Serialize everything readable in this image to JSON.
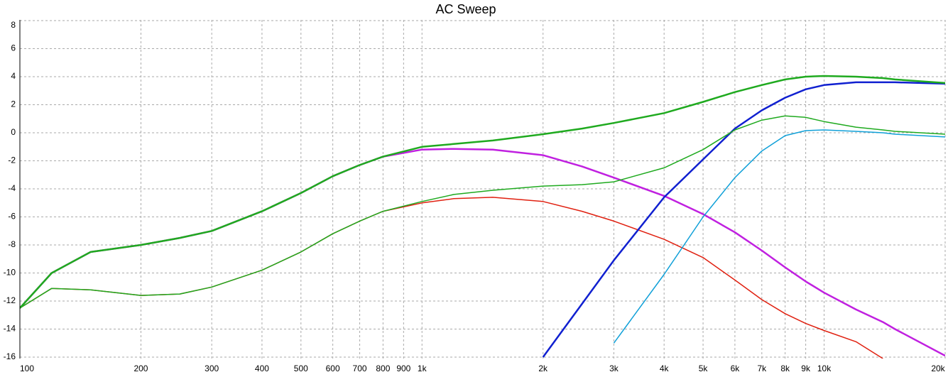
{
  "chart_data": {
    "type": "line",
    "title": "AC Sweep",
    "x": [
      100,
      120,
      150,
      200,
      250,
      300,
      400,
      500,
      600,
      700,
      800,
      1000,
      1200,
      1500,
      2000,
      2500,
      3000,
      4000,
      5000,
      6000,
      7000,
      8000,
      9000,
      10000,
      12000,
      14000,
      15000,
      20000
    ],
    "xlim": [
      100,
      20000
    ],
    "xscale": "log",
    "xticks": [
      100,
      200,
      300,
      400,
      500,
      600,
      700,
      800,
      900,
      {
        "value": 1000,
        "label": "1k"
      },
      {
        "value": 2000,
        "label": "2k"
      },
      {
        "value": 3000,
        "label": "3k"
      },
      {
        "value": 4000,
        "label": "4k"
      },
      {
        "value": 5000,
        "label": "5k"
      },
      {
        "value": 6000,
        "label": "6k"
      },
      {
        "value": 7000,
        "label": "7k"
      },
      {
        "value": 8000,
        "label": "8k"
      },
      {
        "value": 9000,
        "label": "9k"
      },
      {
        "value": 10000,
        "label": "10k"
      },
      {
        "value": 20000,
        "label": "20k"
      }
    ],
    "ylim": [
      -16.1,
      8.05
    ],
    "yticks": [
      -16,
      -14,
      -12,
      -10,
      -8,
      -6,
      -4,
      -2,
      0,
      2,
      4,
      6,
      8
    ],
    "grid": true,
    "series": [
      {
        "color": "#c020e0",
        "width": 2.5,
        "values": [
          -12.5,
          -10,
          -8.5,
          -8,
          -7.5,
          -7,
          -5.6,
          -4.3,
          -3.1,
          -2.3,
          -1.7,
          -1.2,
          -1.15,
          -1.2,
          -1.6,
          -2.4,
          -3.2,
          -4.5,
          -5.8,
          -7.1,
          -8.4,
          -9.6,
          -10.6,
          -11.4,
          -12.6,
          -13.5,
          -14,
          -15.9
        ]
      },
      {
        "color": "#e02010",
        "width": 1.5,
        "values": [
          -12.5,
          -11.1,
          -11.2,
          -11.6,
          -11.5,
          -11,
          -9.8,
          -8.5,
          -7.2,
          -6.3,
          -5.6,
          -5.0,
          -4.7,
          -4.6,
          -4.9,
          -5.6,
          -6.3,
          -7.6,
          -8.9,
          -10.5,
          -11.9,
          -12.9,
          -13.6,
          -14.1,
          -14.9,
          -16.1,
          null,
          null
        ]
      },
      {
        "color": "#1020d0",
        "width": 2.5,
        "values": [
          null,
          null,
          null,
          null,
          null,
          null,
          null,
          null,
          null,
          null,
          null,
          null,
          null,
          null,
          -16,
          -12.2,
          -9.1,
          -4.6,
          -1.9,
          0.3,
          1.6,
          2.5,
          3.1,
          3.4,
          3.6,
          3.6,
          3.6,
          3.5
        ]
      },
      {
        "color": "#10a0d8",
        "width": 1.5,
        "values": [
          null,
          null,
          null,
          null,
          null,
          null,
          null,
          null,
          null,
          null,
          null,
          null,
          null,
          null,
          null,
          null,
          -15.0,
          -10.1,
          -6.0,
          -3.2,
          -1.3,
          -0.2,
          0.15,
          0.2,
          0.1,
          0,
          -0.1,
          -0.3
        ]
      },
      {
        "color": "#1faa1f",
        "width": 1.5,
        "values": [
          -12.5,
          -11.1,
          -11.2,
          -11.6,
          -11.5,
          -11,
          -9.8,
          -8.5,
          -7.2,
          -6.3,
          -5.6,
          -4.9,
          -4.4,
          -4.1,
          -3.8,
          -3.7,
          -3.5,
          -2.5,
          -1.2,
          0.2,
          0.9,
          1.2,
          1.1,
          0.8,
          0.4,
          0.2,
          0.1,
          -0.1
        ]
      },
      {
        "color": "#1faa1f",
        "width": 2.5,
        "values": [
          -12.5,
          -10,
          -8.5,
          -8,
          -7.5,
          -7,
          -5.6,
          -4.3,
          -3.1,
          -2.3,
          -1.7,
          -1.0,
          -0.8,
          -0.55,
          -0.1,
          0.3,
          0.7,
          1.4,
          2.2,
          2.9,
          3.4,
          3.8,
          4.0,
          4.05,
          4.0,
          3.9,
          3.8,
          3.55
        ]
      }
    ]
  }
}
